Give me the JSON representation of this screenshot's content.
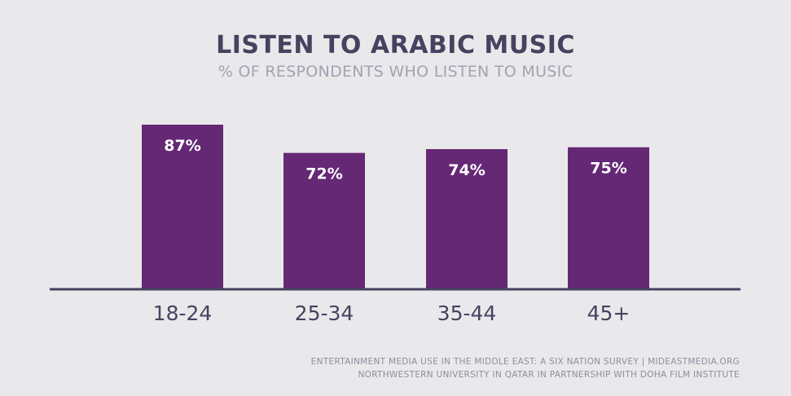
{
  "chart_data": {
    "type": "bar",
    "title": "LISTEN TO ARABIC MUSIC",
    "subtitle": "% OF RESPONDENTS WHO LISTEN TO MUSIC",
    "categories": [
      "18-24",
      "25-34",
      "35-44",
      "45+"
    ],
    "values": [
      87,
      72,
      74,
      75
    ],
    "value_labels": [
      "87%",
      "72%",
      "74%",
      "75%"
    ],
    "xlabel": "",
    "ylabel": "",
    "ylim": [
      0,
      87
    ],
    "grid": false,
    "legend": "none"
  },
  "colors": {
    "background": "#e9e9ec",
    "bar": "#652874",
    "baseline": "#45435f",
    "title": "#45435f",
    "subtitle": "#a3a2b2",
    "value_label": "#ffffff",
    "category_label": "#45435f",
    "footer": "#8e8d9c"
  },
  "footer": {
    "line1": "ENTERTAINMENT MEDIA USE IN THE MIDDLE EAST: A SIX NATION SURVEY | MIDEASTMEDIA.ORG",
    "line2": "NORTHWESTERN UNIVERSITY IN QATAR IN PARTNERSHIP WITH DOHA FILM INSTITUTE"
  }
}
